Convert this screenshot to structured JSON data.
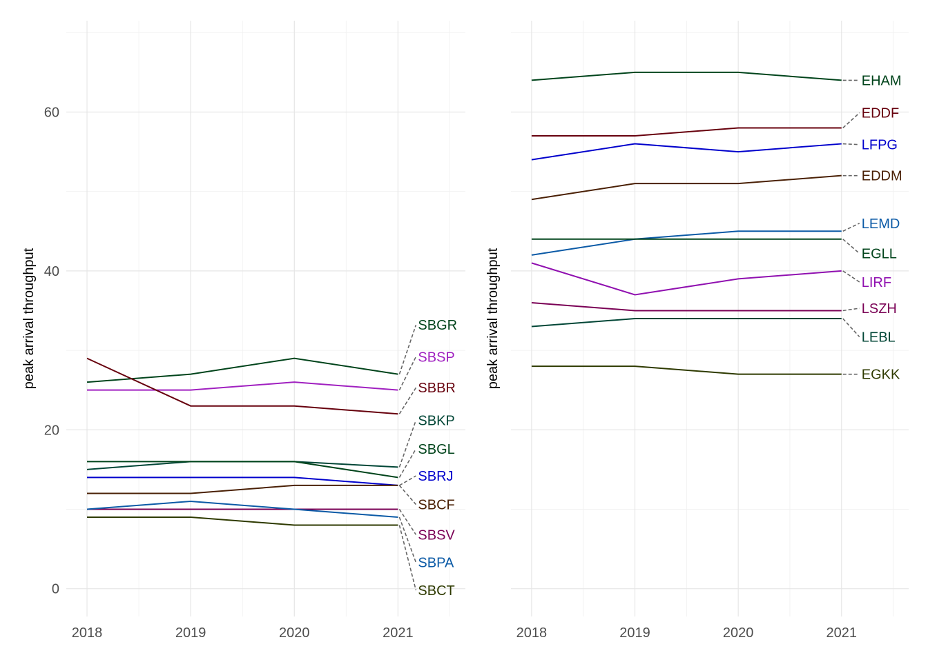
{
  "chart_data": [
    {
      "type": "line",
      "ylabel": "peak arrival throughput",
      "xlabel": "",
      "x": [
        2018,
        2019,
        2020,
        2021
      ],
      "xlim": [
        2017.8,
        2021.65
      ],
      "ylim": [
        -3.5,
        71.5
      ],
      "yticks": [
        0,
        20,
        40,
        60
      ],
      "grid": true,
      "legend": "direct labels at line ends",
      "series": [
        {
          "name": "SBGR",
          "color": "#00441b",
          "values": [
            26,
            27,
            29,
            27
          ],
          "label_y": 33.2
        },
        {
          "name": "SBSP",
          "color": "#a020c0",
          "values": [
            25,
            25,
            26,
            25
          ],
          "label_y": 29.2
        },
        {
          "name": "SBBR",
          "color": "#67000d",
          "values": [
            29,
            23,
            23,
            22
          ],
          "label_y": 25.3
        },
        {
          "name": "SBKP",
          "color": "#014636",
          "values": [
            15,
            16,
            16,
            15.3
          ],
          "label_y": 21.2
        },
        {
          "name": "SBGL",
          "color": "#00441b",
          "values": [
            16,
            16,
            16,
            14
          ],
          "label_y": 17.6
        },
        {
          "name": "SBRJ",
          "color": "#0000cc",
          "values": [
            14,
            14,
            14,
            13
          ],
          "label_y": 14.2
        },
        {
          "name": "SBCF",
          "color": "#4a2005",
          "values": [
            12,
            12,
            13,
            13
          ],
          "label_y": 10.6
        },
        {
          "name": "SBSV",
          "color": "#7a0055",
          "values": [
            10,
            10,
            10,
            10
          ],
          "label_y": 6.8
        },
        {
          "name": "SBPA",
          "color": "#0b5aa6",
          "values": [
            10,
            11,
            10,
            9
          ],
          "label_y": 3.3
        },
        {
          "name": "SBCT",
          "color": "#2e3a00",
          "values": [
            9,
            9,
            8,
            8
          ],
          "label_y": -0.2
        }
      ]
    },
    {
      "type": "line",
      "ylabel": "peak arrival throughput",
      "xlabel": "",
      "x": [
        2018,
        2019,
        2020,
        2021
      ],
      "xlim": [
        2017.8,
        2021.65
      ],
      "ylim": [
        -3.5,
        71.5
      ],
      "yticks": [
        0,
        20,
        40,
        60
      ],
      "grid": true,
      "legend": "direct labels at line ends",
      "series": [
        {
          "name": "EHAM",
          "color": "#00441b",
          "values": [
            64,
            65,
            65,
            64
          ],
          "label_y": 64.0
        },
        {
          "name": "EDDF",
          "color": "#67000d",
          "values": [
            57,
            57,
            58,
            58
          ],
          "label_y": 59.9
        },
        {
          "name": "LFPG",
          "color": "#0000cc",
          "values": [
            54,
            56,
            55,
            56
          ],
          "label_y": 55.9
        },
        {
          "name": "EDDM",
          "color": "#4a2005",
          "values": [
            49,
            51,
            51,
            52
          ],
          "label_y": 52.0
        },
        {
          "name": "LEMD",
          "color": "#0b5aa6",
          "values": [
            42,
            44,
            45,
            45
          ],
          "label_y": 46.0
        },
        {
          "name": "EGLL",
          "color": "#00441b",
          "values": [
            44,
            44,
            44,
            44
          ],
          "label_y": 42.2
        },
        {
          "name": "LIRF",
          "color": "#9010b0",
          "values": [
            41,
            37,
            39,
            40
          ],
          "label_y": 38.6
        },
        {
          "name": "LSZH",
          "color": "#7a0055",
          "values": [
            36,
            35,
            35,
            35
          ],
          "label_y": 35.3
        },
        {
          "name": "LEBL",
          "color": "#014636",
          "values": [
            33,
            34,
            34,
            34
          ],
          "label_y": 31.7
        },
        {
          "name": "EGKK",
          "color": "#2e3a00",
          "values": [
            28,
            28,
            27,
            27
          ],
          "label_y": 27.0
        }
      ]
    }
  ]
}
